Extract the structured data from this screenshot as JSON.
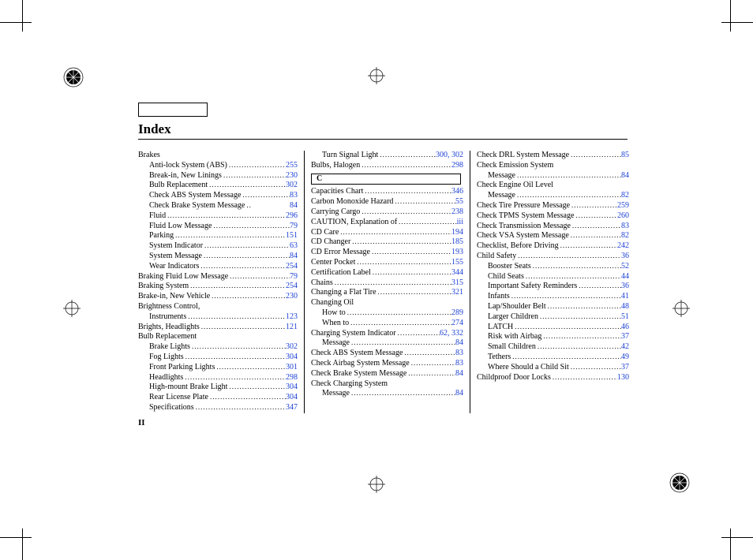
{
  "title": "Index",
  "page_number": "II",
  "section_letter": "C",
  "link_color": "#1a3fd4",
  "col1": [
    {
      "t": "Brakes",
      "p": "",
      "plain": true
    },
    {
      "t": "Anti-lock System (ABS)",
      "p": "255",
      "sub": true
    },
    {
      "t": "Break-in, New Linings",
      "p": "230",
      "sub": true
    },
    {
      "t": "Bulb Replacement",
      "p": "302",
      "sub": true
    },
    {
      "t": "Check ABS System Message",
      "p": "83",
      "sub": true
    },
    {
      "t": "Check Brake System Message",
      "p": "84",
      "sub": true,
      "tight": true
    },
    {
      "t": "Fluid",
      "p": "296",
      "sub": true
    },
    {
      "t": "Fluid Low Message",
      "p": "79",
      "sub": true
    },
    {
      "t": "Parking",
      "p": "151",
      "sub": true
    },
    {
      "t": "System Indicator",
      "p": "63",
      "sub": true
    },
    {
      "t": "System Message",
      "p": "84",
      "sub": true
    },
    {
      "t": "Wear Indicators",
      "p": "254",
      "sub": true
    },
    {
      "t": "Braking Fluid Low Message",
      "p": "79"
    },
    {
      "t": "Braking System",
      "p": "254"
    },
    {
      "t": "Brake-in, New Vehicle",
      "p": "230"
    },
    {
      "t": "Brightness Control,",
      "p": "",
      "plain": true
    },
    {
      "t": "Instruments",
      "p": "123",
      "sub": true
    },
    {
      "t": "Brights, Headlights",
      "p": "121"
    },
    {
      "t": "Bulb Replacement",
      "p": "",
      "plain": true
    },
    {
      "t": "Brake Lights",
      "p": "302",
      "sub": true
    },
    {
      "t": "Fog Lights",
      "p": "304",
      "sub": true
    },
    {
      "t": "Front Parking Lights",
      "p": "301",
      "sub": true
    },
    {
      "t": "Headlights",
      "p": "298",
      "sub": true
    },
    {
      "t": "High-mount Brake Light",
      "p": "304",
      "sub": true
    },
    {
      "t": "Rear License Plate",
      "p": "304",
      "sub": true
    },
    {
      "t": "Specifications",
      "p": "347",
      "sub": true
    }
  ],
  "col2_pre": [
    {
      "t": "Turn Signal Light",
      "p": "300, 302",
      "sub": true
    },
    {
      "t": "Bulbs, Halogen",
      "p": "298"
    }
  ],
  "col2_post": [
    {
      "t": "Capacities Chart",
      "p": "346"
    },
    {
      "t": "Carbon Monoxide Hazard",
      "p": "55"
    },
    {
      "t": "Carrying Cargo",
      "p": "238"
    },
    {
      "t": "CAUTION, Explanation of",
      "p": "iii"
    },
    {
      "t": "CD Care",
      "p": "194"
    },
    {
      "t": "CD Changer",
      "p": "185"
    },
    {
      "t": "CD Error Message",
      "p": "193"
    },
    {
      "t": "Center Pocket",
      "p": "155"
    },
    {
      "t": "Certification Label",
      "p": "344"
    },
    {
      "t": "Chains",
      "p": "315"
    },
    {
      "t": "Changing a Flat Tire",
      "p": "321"
    },
    {
      "t": "Changing Oil",
      "p": "",
      "plain": true
    },
    {
      "t": "How to",
      "p": "289",
      "sub": true
    },
    {
      "t": "When to",
      "p": "274",
      "sub": true
    },
    {
      "t": "Charging System Indicator",
      "p": "62, 332"
    },
    {
      "t": "Message",
      "p": "84",
      "sub": true
    },
    {
      "t": "Check ABS System Message",
      "p": "83"
    },
    {
      "t": "Check Airbag System Message",
      "p": "83"
    },
    {
      "t": "Check Brake System Message",
      "p": "84"
    },
    {
      "t": "Check Charging System",
      "p": "",
      "plain": true
    },
    {
      "t": "Message",
      "p": "84",
      "sub": true
    }
  ],
  "col3": [
    {
      "t": "Check DRL System Message",
      "p": "85"
    },
    {
      "t": "Check Emission System",
      "p": "",
      "plain": true
    },
    {
      "t": "Message",
      "p": "84",
      "sub": true
    },
    {
      "t": "Check Engine Oil Level",
      "p": "",
      "plain": true
    },
    {
      "t": "Message",
      "p": "82",
      "sub": true
    },
    {
      "t": "Check Tire Pressure Message",
      "p": "259"
    },
    {
      "t": "Check TPMS System Message",
      "p": "260"
    },
    {
      "t": "Check Transmission Message",
      "p": "83"
    },
    {
      "t": "Check VSA System Message",
      "p": "82"
    },
    {
      "t": "Checklist, Before Driving",
      "p": "242"
    },
    {
      "t": "Child Safety",
      "p": "36"
    },
    {
      "t": "Booster Seats",
      "p": "52",
      "sub": true
    },
    {
      "t": "Child Seats",
      "p": "44",
      "sub": true
    },
    {
      "t": "Important Safety Reminders",
      "p": "36",
      "sub": true
    },
    {
      "t": "Infants",
      "p": "41",
      "sub": true
    },
    {
      "t": "Lap/Shoulder Belt",
      "p": "48",
      "sub": true
    },
    {
      "t": "Larger Children",
      "p": "51",
      "sub": true
    },
    {
      "t": "LATCH",
      "p": "46",
      "sub": true
    },
    {
      "t": "Risk with Airbag",
      "p": "37",
      "sub": true
    },
    {
      "t": "Small Children",
      "p": "42",
      "sub": true
    },
    {
      "t": "Tethers",
      "p": "49",
      "sub": true
    },
    {
      "t": "Where Should a Child Sit",
      "p": "37",
      "sub": true
    },
    {
      "t": "Childproof Door Locks",
      "p": "130"
    }
  ]
}
